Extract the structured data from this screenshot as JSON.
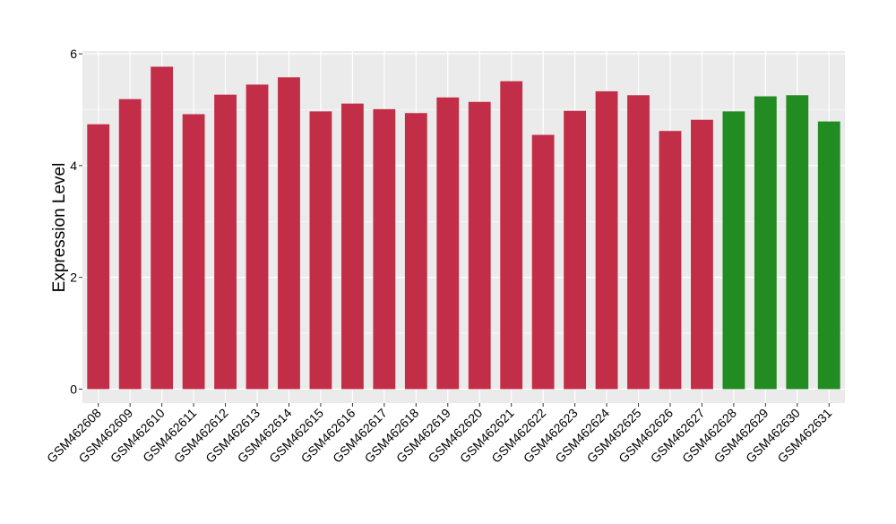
{
  "chart_data": {
    "type": "bar",
    "title": "",
    "xlabel": "",
    "ylabel": "Expression Level",
    "ylim": [
      -0.25,
      6.05
    ],
    "yticks": [
      0,
      2,
      4,
      6
    ],
    "grid": true,
    "categories": [
      "GSM462608",
      "GSM462609",
      "GSM462610",
      "GSM462611",
      "GSM462612",
      "GSM462613",
      "GSM462614",
      "GSM462615",
      "GSM462616",
      "GSM462617",
      "GSM462618",
      "GSM462619",
      "GSM462620",
      "GSM462621",
      "GSM462622",
      "GSM462623",
      "GSM462624",
      "GSM462625",
      "GSM462626",
      "GSM462627",
      "GSM462628",
      "GSM462629",
      "GSM462630",
      "GSM462631"
    ],
    "values": [
      4.74,
      5.19,
      5.77,
      4.92,
      5.27,
      5.45,
      5.58,
      4.97,
      5.11,
      5.01,
      4.94,
      5.22,
      5.14,
      5.51,
      4.55,
      4.98,
      5.33,
      5.26,
      4.62,
      4.82,
      4.97,
      5.24,
      5.26,
      4.79
    ],
    "bar_colors": [
      "#C22E47",
      "#C22E47",
      "#C22E47",
      "#C22E47",
      "#C22E47",
      "#C22E47",
      "#C22E47",
      "#C22E47",
      "#C22E47",
      "#C22E47",
      "#C22E47",
      "#C22E47",
      "#C22E47",
      "#C22E47",
      "#C22E47",
      "#C22E47",
      "#C22E47",
      "#C22E47",
      "#C22E47",
      "#C22E47",
      "#228B22",
      "#228B22",
      "#228B22",
      "#228B22"
    ],
    "panel_background": "#EBEBEB",
    "gridline_color": "#FFFFFF"
  }
}
